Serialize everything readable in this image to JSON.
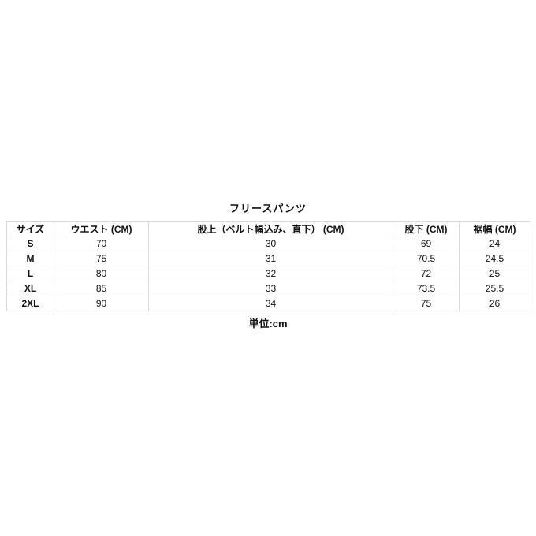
{
  "page": {
    "title": "フリースパンツ",
    "unit_note": "単位:cm"
  },
  "table": {
    "columns": [
      "サイズ",
      "ウエスト (CM)",
      "股上（ベルト幅込み、直下） (CM)",
      "股下 (CM)",
      "裾幅 (CM)"
    ],
    "rows": [
      {
        "size": "S",
        "waist": "70",
        "rise": "30",
        "inseam": "69",
        "hem": "24"
      },
      {
        "size": "M",
        "waist": "75",
        "rise": "31",
        "inseam": "70.5",
        "hem": "24.5"
      },
      {
        "size": "L",
        "waist": "80",
        "rise": "32",
        "inseam": "72",
        "hem": "25"
      },
      {
        "size": "XL",
        "waist": "85",
        "rise": "33",
        "inseam": "73.5",
        "hem": "25.5"
      },
      {
        "size": "2XL",
        "waist": "90",
        "rise": "34",
        "inseam": "75",
        "hem": "26"
      }
    ]
  },
  "colors": {
    "background": "#ffffff",
    "text": "#111111",
    "table_border": "#d9d9d9"
  }
}
